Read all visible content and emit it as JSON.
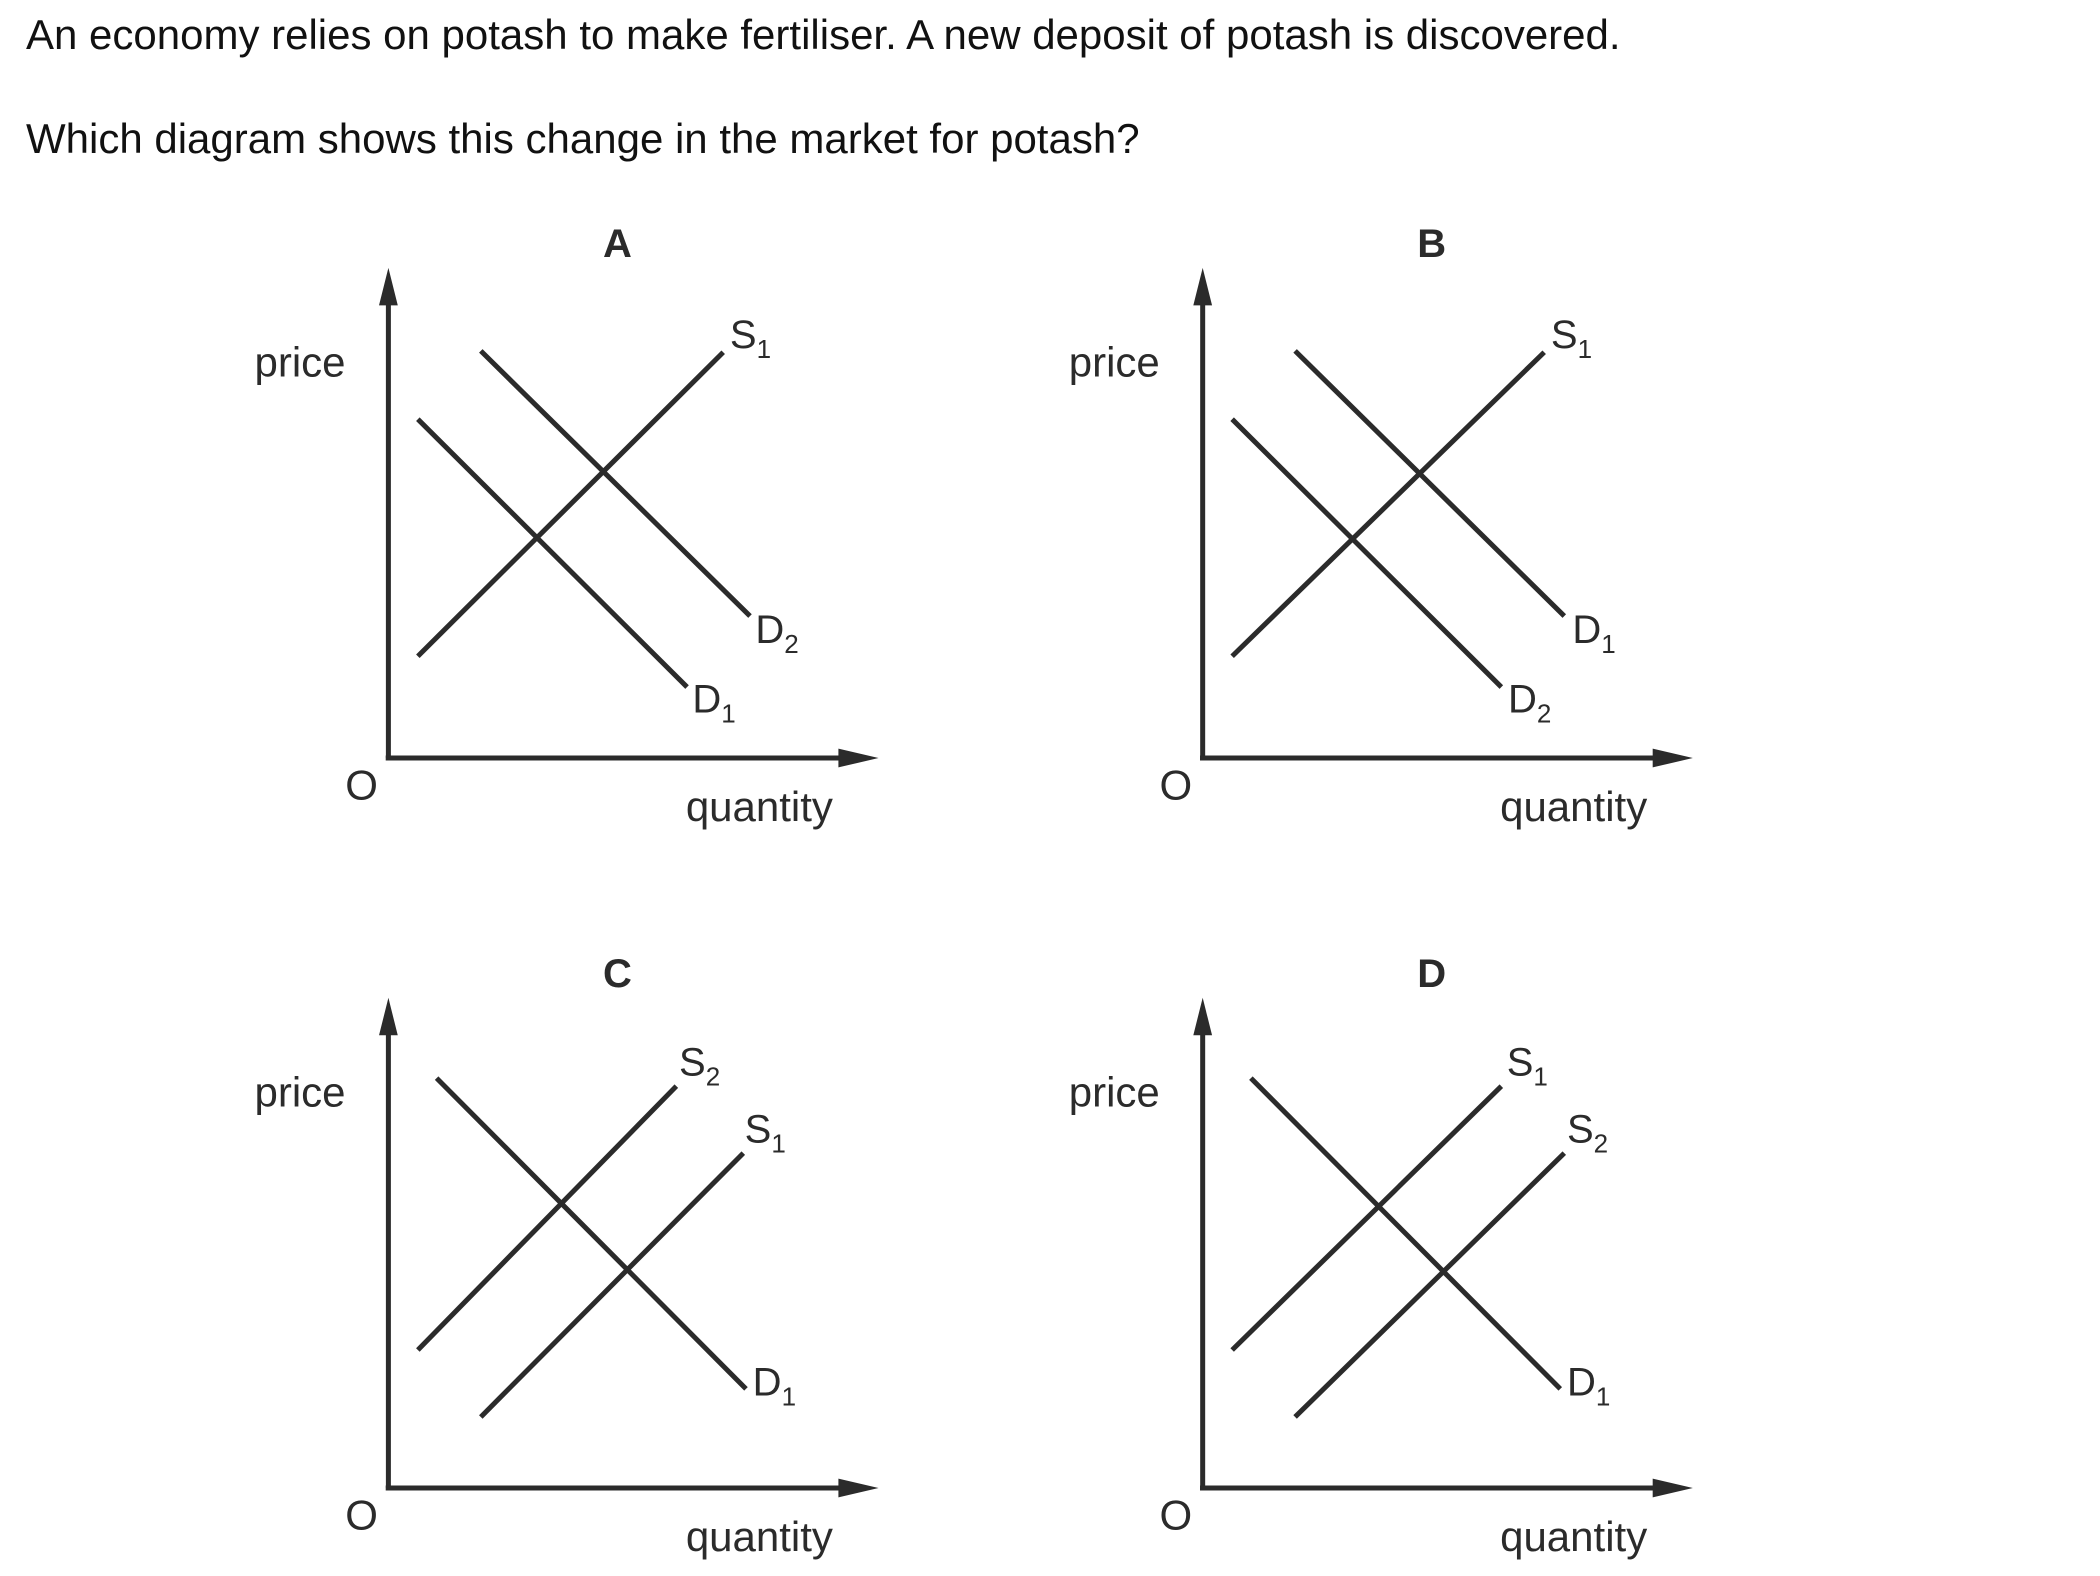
{
  "question": {
    "line1": "An economy relies on potash to make fertiliser. A new deposit of potash is discovered.",
    "line2": "Which diagram shows this change in the market for potash?"
  },
  "diagrams": [
    {
      "letter": "A",
      "y_label": "price",
      "x_label": "quantity",
      "origin_label": "O",
      "curves": [
        {
          "type": "supply",
          "name": "S",
          "sub": "1"
        },
        {
          "type": "demand",
          "name": "D",
          "sub": "1"
        },
        {
          "type": "demand",
          "name": "D",
          "sub": "2"
        }
      ]
    },
    {
      "letter": "B",
      "y_label": "price",
      "x_label": "quantity",
      "origin_label": "O",
      "curves": [
        {
          "type": "supply",
          "name": "S",
          "sub": "1"
        },
        {
          "type": "demand",
          "name": "D",
          "sub": "1"
        },
        {
          "type": "demand",
          "name": "D",
          "sub": "2"
        }
      ]
    },
    {
      "letter": "C",
      "y_label": "price",
      "x_label": "quantity",
      "origin_label": "O",
      "curves": [
        {
          "type": "supply",
          "name": "S",
          "sub": "2"
        },
        {
          "type": "supply",
          "name": "S",
          "sub": "1"
        },
        {
          "type": "demand",
          "name": "D",
          "sub": "1"
        }
      ]
    },
    {
      "letter": "D",
      "y_label": "price",
      "x_label": "quantity",
      "origin_label": "O",
      "curves": [
        {
          "type": "supply",
          "name": "S",
          "sub": "1"
        },
        {
          "type": "supply",
          "name": "S",
          "sub": "2"
        },
        {
          "type": "demand",
          "name": "D",
          "sub": "1"
        }
      ]
    }
  ]
}
